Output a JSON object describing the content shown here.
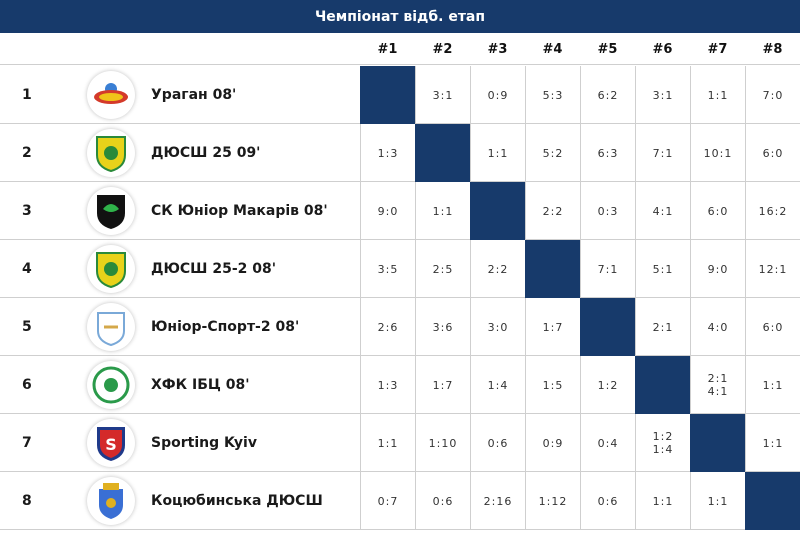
{
  "title": "Чемпіонат відб. етап",
  "columns": [
    "#1",
    "#2",
    "#3",
    "#4",
    "#5",
    "#6",
    "#7",
    "#8"
  ],
  "colors": {
    "header_bg": "#173a6b",
    "diagonal": "#173a6b",
    "grid_line": "#cfcfcf"
  },
  "teams": [
    {
      "pos": "1",
      "name": "Ураган 08'",
      "logo": "uragan-logo",
      "results": [
        "",
        "3:1",
        "0:9",
        "5:3",
        "6:2",
        "3:1",
        "1:1",
        "7:0"
      ]
    },
    {
      "pos": "2",
      "name": "ДЮСШ 25 09'",
      "logo": "dyussh25-logo",
      "results": [
        "1:3",
        "",
        "1:1",
        "5:2",
        "6:3",
        "7:1",
        "10:1",
        "6:0"
      ]
    },
    {
      "pos": "3",
      "name": "СК Юніор Макарів 08'",
      "logo": "junior-makariv-logo",
      "results": [
        "9:0",
        "1:1",
        "",
        "2:2",
        "0:3",
        "4:1",
        "6:0",
        "16:2"
      ]
    },
    {
      "pos": "4",
      "name": "ДЮСШ 25-2 08'",
      "logo": "dyussh25-2-logo",
      "results": [
        "3:5",
        "2:5",
        "2:2",
        "",
        "7:1",
        "5:1",
        "9:0",
        "12:1"
      ]
    },
    {
      "pos": "5",
      "name": "Юніор-Спорт-2 08'",
      "logo": "junior-sport-logo",
      "results": [
        "2:6",
        "3:6",
        "3:0",
        "1:7",
        "",
        "2:1",
        "4:0",
        "6:0"
      ]
    },
    {
      "pos": "6",
      "name": "ХФК ІБЦ 08'",
      "logo": "hfk-ibc-logo",
      "results": [
        "1:3",
        "1:7",
        "1:4",
        "1:5",
        "1:2",
        "",
        "2:1\n4:1",
        "1:1"
      ]
    },
    {
      "pos": "7",
      "name": "Sporting Kyiv",
      "logo": "sporting-kyiv-logo",
      "results": [
        "1:1",
        "1:10",
        "0:6",
        "0:9",
        "0:4",
        "1:2\n1:4",
        "",
        "1:1"
      ]
    },
    {
      "pos": "8",
      "name": "Коцюбинська ДЮСШ",
      "logo": "kotsiubynska-logo",
      "results": [
        "0:7",
        "0:6",
        "2:16",
        "1:12",
        "0:6",
        "1:1",
        "1:1",
        ""
      ]
    }
  ]
}
